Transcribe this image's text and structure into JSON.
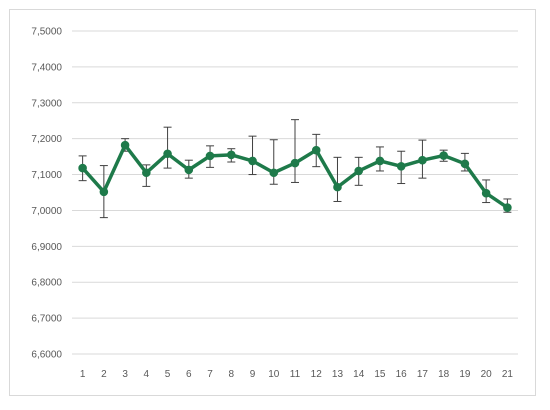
{
  "chart_data": {
    "type": "line",
    "title": "",
    "xlabel": "",
    "ylabel": "",
    "categories": [
      "1",
      "2",
      "3",
      "4",
      "5",
      "6",
      "7",
      "8",
      "9",
      "10",
      "11",
      "12",
      "13",
      "14",
      "15",
      "16",
      "17",
      "18",
      "19",
      "20",
      "21"
    ],
    "y_tick_labels": [
      "6,6000",
      "6,7000",
      "6,8000",
      "6,9000",
      "7,0000",
      "7,1000",
      "7,2000",
      "7,3000",
      "7,4000",
      "7,5000"
    ],
    "ylim": [
      6.6,
      7.5
    ],
    "yticks": [
      6.6,
      6.7,
      6.8,
      6.9,
      7.0,
      7.1,
      7.2,
      7.3,
      7.4,
      7.5
    ],
    "grid": true,
    "legend": "none",
    "series": [
      {
        "color": "#1e7a4a",
        "values": [
          7.118,
          7.052,
          7.182,
          7.105,
          7.158,
          7.113,
          7.152,
          7.155,
          7.138,
          7.105,
          7.132,
          7.168,
          7.065,
          7.11,
          7.138,
          7.123,
          7.14,
          7.153,
          7.13,
          7.048,
          7.008
        ],
        "error_high": [
          7.152,
          7.125,
          7.2,
          7.127,
          7.232,
          7.14,
          7.18,
          7.172,
          7.207,
          7.197,
          7.253,
          7.212,
          7.148,
          7.148,
          7.177,
          7.165,
          7.196,
          7.168,
          7.159,
          7.085,
          7.032
        ],
        "error_low": [
          7.083,
          6.98,
          7.165,
          7.067,
          7.118,
          7.09,
          7.12,
          7.135,
          7.1,
          7.073,
          7.078,
          7.122,
          7.025,
          7.07,
          7.11,
          7.075,
          7.09,
          7.137,
          7.11,
          7.022,
          6.995
        ]
      }
    ]
  }
}
